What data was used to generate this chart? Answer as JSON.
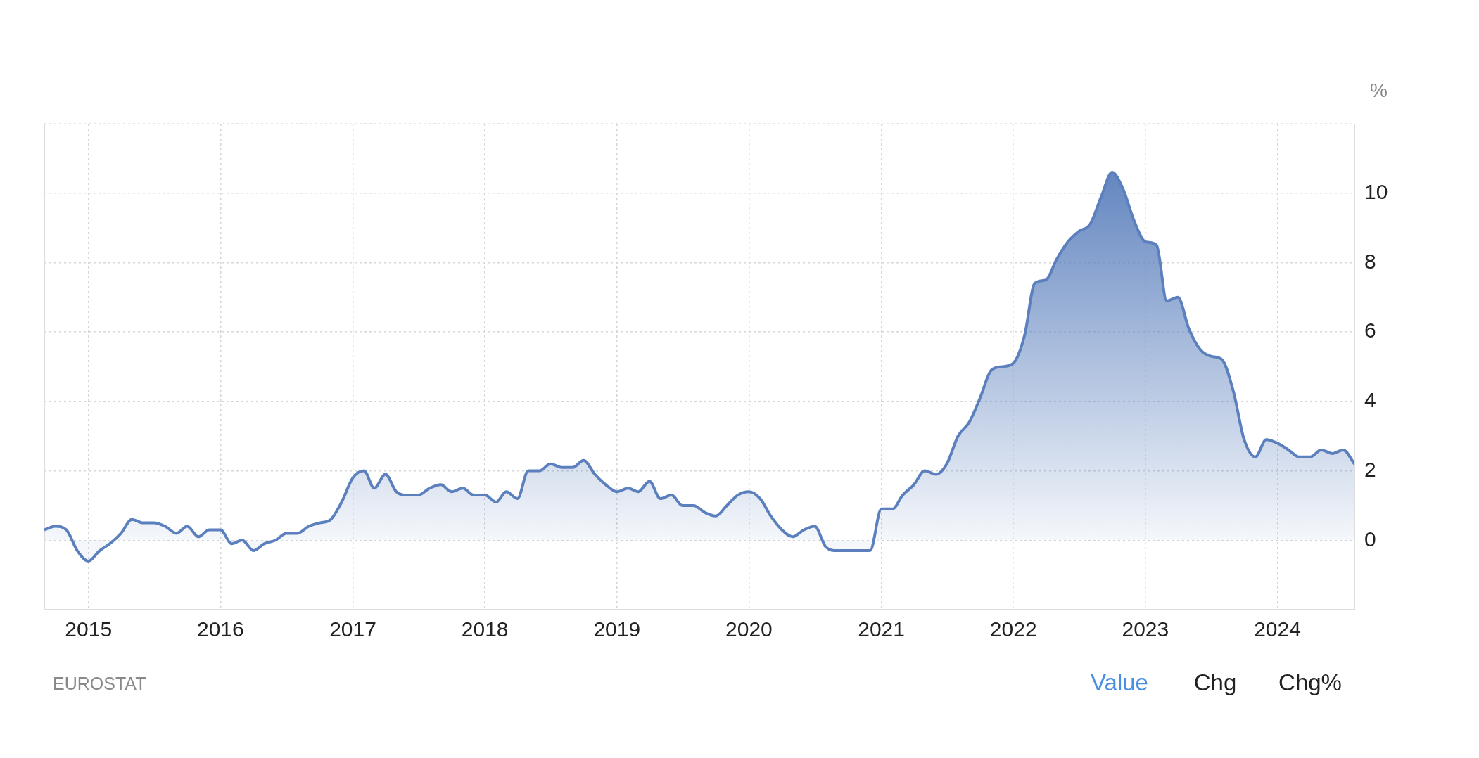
{
  "chart_data": {
    "type": "area",
    "ylabel": "%",
    "annotations": [
      "EUROSTAT",
      "Value",
      "Chg",
      "Chg%"
    ],
    "x": [
      "2014-09",
      "2014-10",
      "2014-11",
      "2014-12",
      "2015-01",
      "2015-02",
      "2015-03",
      "2015-04",
      "2015-05",
      "2015-06",
      "2015-07",
      "2015-08",
      "2015-09",
      "2015-10",
      "2015-11",
      "2015-12",
      "2016-01",
      "2016-02",
      "2016-03",
      "2016-04",
      "2016-05",
      "2016-06",
      "2016-07",
      "2016-08",
      "2016-09",
      "2016-10",
      "2016-11",
      "2016-12",
      "2017-01",
      "2017-02",
      "2017-03",
      "2017-04",
      "2017-05",
      "2017-06",
      "2017-07",
      "2017-08",
      "2017-09",
      "2017-10",
      "2017-11",
      "2017-12",
      "2018-01",
      "2018-02",
      "2018-03",
      "2018-04",
      "2018-05",
      "2018-06",
      "2018-07",
      "2018-08",
      "2018-09",
      "2018-10",
      "2018-11",
      "2018-12",
      "2019-01",
      "2019-02",
      "2019-03",
      "2019-04",
      "2019-05",
      "2019-06",
      "2019-07",
      "2019-08",
      "2019-09",
      "2019-10",
      "2019-11",
      "2019-12",
      "2020-01",
      "2020-02",
      "2020-03",
      "2020-04",
      "2020-05",
      "2020-06",
      "2020-07",
      "2020-08",
      "2020-09",
      "2020-10",
      "2020-11",
      "2020-12",
      "2021-01",
      "2021-02",
      "2021-03",
      "2021-04",
      "2021-05",
      "2021-06",
      "2021-07",
      "2021-08",
      "2021-09",
      "2021-10",
      "2021-11",
      "2021-12",
      "2022-01",
      "2022-02",
      "2022-03",
      "2022-04",
      "2022-05",
      "2022-06",
      "2022-07",
      "2022-08",
      "2022-09",
      "2022-10",
      "2022-11",
      "2022-12",
      "2023-01",
      "2023-02",
      "2023-03",
      "2023-04",
      "2023-05",
      "2023-06",
      "2023-07",
      "2023-08",
      "2023-09",
      "2023-10",
      "2023-11",
      "2023-12",
      "2024-01",
      "2024-02",
      "2024-03",
      "2024-04",
      "2024-05",
      "2024-06",
      "2024-07",
      "2024-08"
    ],
    "series": [
      {
        "color": "#5b80bd",
        "values": [
          0.3,
          0.4,
          0.3,
          -0.3,
          -0.6,
          -0.3,
          -0.1,
          0.2,
          0.6,
          0.5,
          0.5,
          0.4,
          0.2,
          0.4,
          0.1,
          0.3,
          0.3,
          -0.1,
          0.0,
          -0.3,
          -0.1,
          0.0,
          0.2,
          0.2,
          0.4,
          0.5,
          0.6,
          1.1,
          1.8,
          2.0,
          1.5,
          1.9,
          1.4,
          1.3,
          1.3,
          1.5,
          1.6,
          1.4,
          1.5,
          1.3,
          1.3,
          1.1,
          1.4,
          1.2,
          2.0,
          2.0,
          2.2,
          2.1,
          2.1,
          2.3,
          1.9,
          1.6,
          1.4,
          1.5,
          1.4,
          1.7,
          1.2,
          1.3,
          1.0,
          1.0,
          0.8,
          0.7,
          1.0,
          1.3,
          1.4,
          1.2,
          0.7,
          0.3,
          0.1,
          0.3,
          0.4,
          -0.2,
          -0.3,
          -0.3,
          -0.3,
          -0.3,
          0.9,
          0.9,
          1.3,
          1.6,
          2.0,
          1.9,
          2.2,
          3.0,
          3.4,
          4.1,
          4.9,
          5.0,
          5.1,
          5.9,
          7.4,
          7.5,
          8.1,
          8.6,
          8.9,
          9.1,
          9.9,
          10.6,
          10.1,
          9.2,
          8.6,
          8.5,
          6.9,
          7.0,
          6.1,
          5.5,
          5.3,
          5.2,
          4.3,
          2.9,
          2.4,
          2.9,
          2.8,
          2.6,
          2.4,
          2.4,
          2.6,
          2.5,
          2.6,
          2.2
        ]
      }
    ],
    "xlim": [
      "2014-09",
      "2024-08"
    ],
    "xticks": [
      "2015",
      "2016",
      "2017",
      "2018",
      "2019",
      "2020",
      "2021",
      "2022",
      "2023",
      "2024"
    ],
    "ylim": [
      -2,
      12
    ],
    "yticks": [
      0,
      2,
      4,
      6,
      8,
      10
    ],
    "grid": true,
    "legend": false,
    "marker": "none",
    "line_style": "solid"
  }
}
